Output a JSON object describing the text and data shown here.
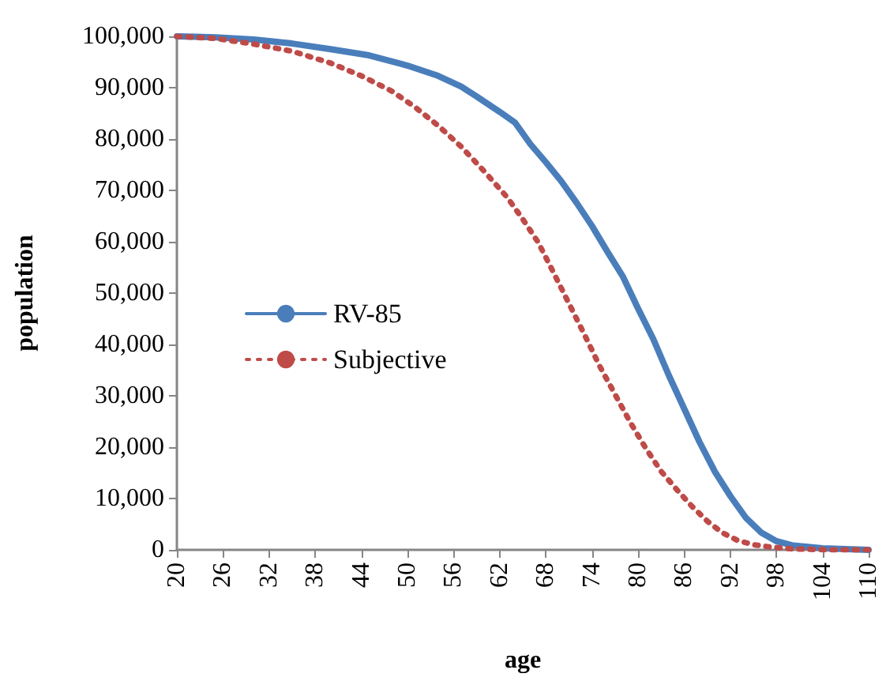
{
  "chart_data": {
    "type": "line",
    "xlabel": "age",
    "ylabel": "population",
    "xlim": [
      20,
      110
    ],
    "xticks": [
      20,
      26,
      32,
      38,
      44,
      50,
      56,
      62,
      68,
      74,
      80,
      86,
      92,
      98,
      104,
      110
    ],
    "ylim": [
      0,
      100000
    ],
    "yticks": [
      {
        "value": 0,
        "label": "0"
      },
      {
        "value": 10000,
        "label": "10,000"
      },
      {
        "value": 20000,
        "label": "20,000"
      },
      {
        "value": 30000,
        "label": "30,000"
      },
      {
        "value": 40000,
        "label": "40,000"
      },
      {
        "value": 50000,
        "label": "50,000"
      },
      {
        "value": 60000,
        "label": "60,000"
      },
      {
        "value": 70000,
        "label": "70,000"
      },
      {
        "value": 80000,
        "label": "80,000"
      },
      {
        "value": 90000,
        "label": "90,000"
      },
      {
        "value": 100000,
        "label": "100,000"
      }
    ],
    "grid": false,
    "legend": "left",
    "marker": "none",
    "series": [
      {
        "name": "RV-85",
        "color": "#4a7ebb",
        "line_style": "solid",
        "x": [
          20,
          25,
          30,
          35,
          40,
          45,
          50,
          54,
          57,
          59,
          62,
          64,
          66,
          68,
          70,
          72,
          74,
          76,
          78,
          80,
          82,
          84,
          86,
          88,
          90,
          92,
          94,
          96,
          98,
          100,
          104,
          110
        ],
        "values": [
          100000,
          99800,
          99400,
          98600,
          97500,
          96300,
          94300,
          92300,
          90200,
          88300,
          85300,
          83200,
          79000,
          75500,
          71800,
          67600,
          63100,
          58100,
          53300,
          47000,
          41000,
          34000,
          27500,
          21000,
          15200,
          10500,
          6300,
          3400,
          1700,
          900,
          300,
          0
        ]
      },
      {
        "name": "Subjective",
        "color": "#be4b48",
        "line_style": "dotted",
        "x": [
          20,
          25,
          30,
          35,
          40,
          44,
          48,
          51,
          54,
          57,
          60,
          63,
          65,
          67,
          69,
          71,
          73,
          75,
          77,
          79,
          81,
          83,
          85,
          87,
          89,
          91,
          93,
          95,
          97,
          100,
          105,
          110
        ],
        "values": [
          100000,
          99600,
          98500,
          97100,
          94800,
          92300,
          89300,
          86200,
          82600,
          78500,
          73700,
          68600,
          64400,
          59900,
          54000,
          48000,
          42000,
          35800,
          30300,
          24800,
          19800,
          15300,
          11800,
          8500,
          5600,
          3300,
          1800,
          1000,
          600,
          200,
          0,
          0
        ]
      }
    ]
  }
}
